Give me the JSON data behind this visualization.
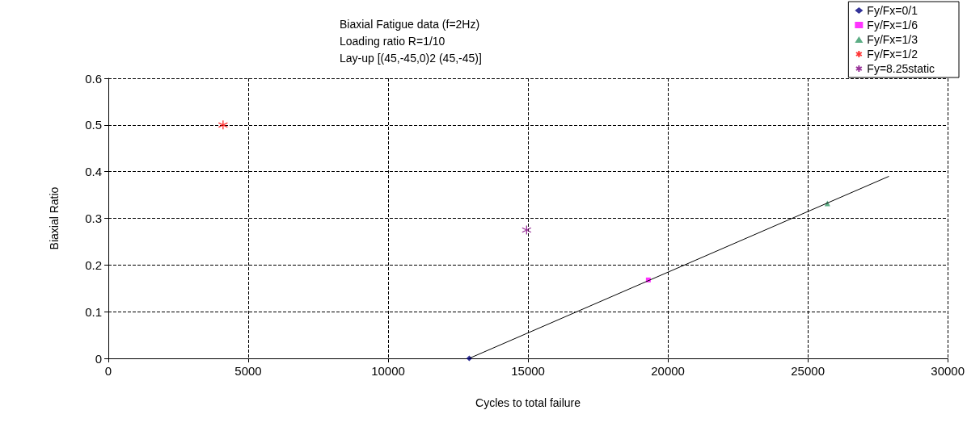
{
  "chart_data": {
    "type": "scatter",
    "title": "Biaxial Fatigue data (f=2Hz)\nLoading ratio R=1/10\nLay-up [(45,-45,0)2 (45,-45)]",
    "xlabel": "Cycles to total failure",
    "ylabel": "Biaxial Ratio",
    "xlim": [
      0,
      30000
    ],
    "xticks": [
      0,
      5000,
      10000,
      15000,
      20000,
      25000,
      30000
    ],
    "ylim": [
      0,
      0.6
    ],
    "yticks": [
      0,
      0.1,
      0.2,
      0.3,
      0.4,
      0.5,
      0.6
    ],
    "grid": true,
    "legend": "top right",
    "series": [
      {
        "name": "Fy/Fx=0/1",
        "color": "#000080",
        "marker": "diamond",
        "x": [
          12900
        ],
        "values": [
          0
        ]
      },
      {
        "name": "Fy/Fx=1/6",
        "color": "#ff00ff",
        "marker": "square",
        "x": [
          19300
        ],
        "values": [
          0.168
        ]
      },
      {
        "name": "Fy/Fx=1/3",
        "color": "#339966",
        "marker": "triangle",
        "x": [
          25700
        ],
        "values": [
          0.332
        ]
      },
      {
        "name": "Fy/Fx=1/2",
        "color": "#ff0000",
        "marker": "cross",
        "x": [
          4100
        ],
        "values": [
          0.5
        ]
      },
      {
        "name": "Fy=8.25static",
        "color": "#800080",
        "marker": "cross",
        "x": [
          14950
        ],
        "values": [
          0.275
        ]
      },
      {
        "type": "line",
        "color": "#000000",
        "marker": "none",
        "x": [
          12900,
          27900
        ],
        "values": [
          0,
          0.39
        ]
      }
    ]
  }
}
